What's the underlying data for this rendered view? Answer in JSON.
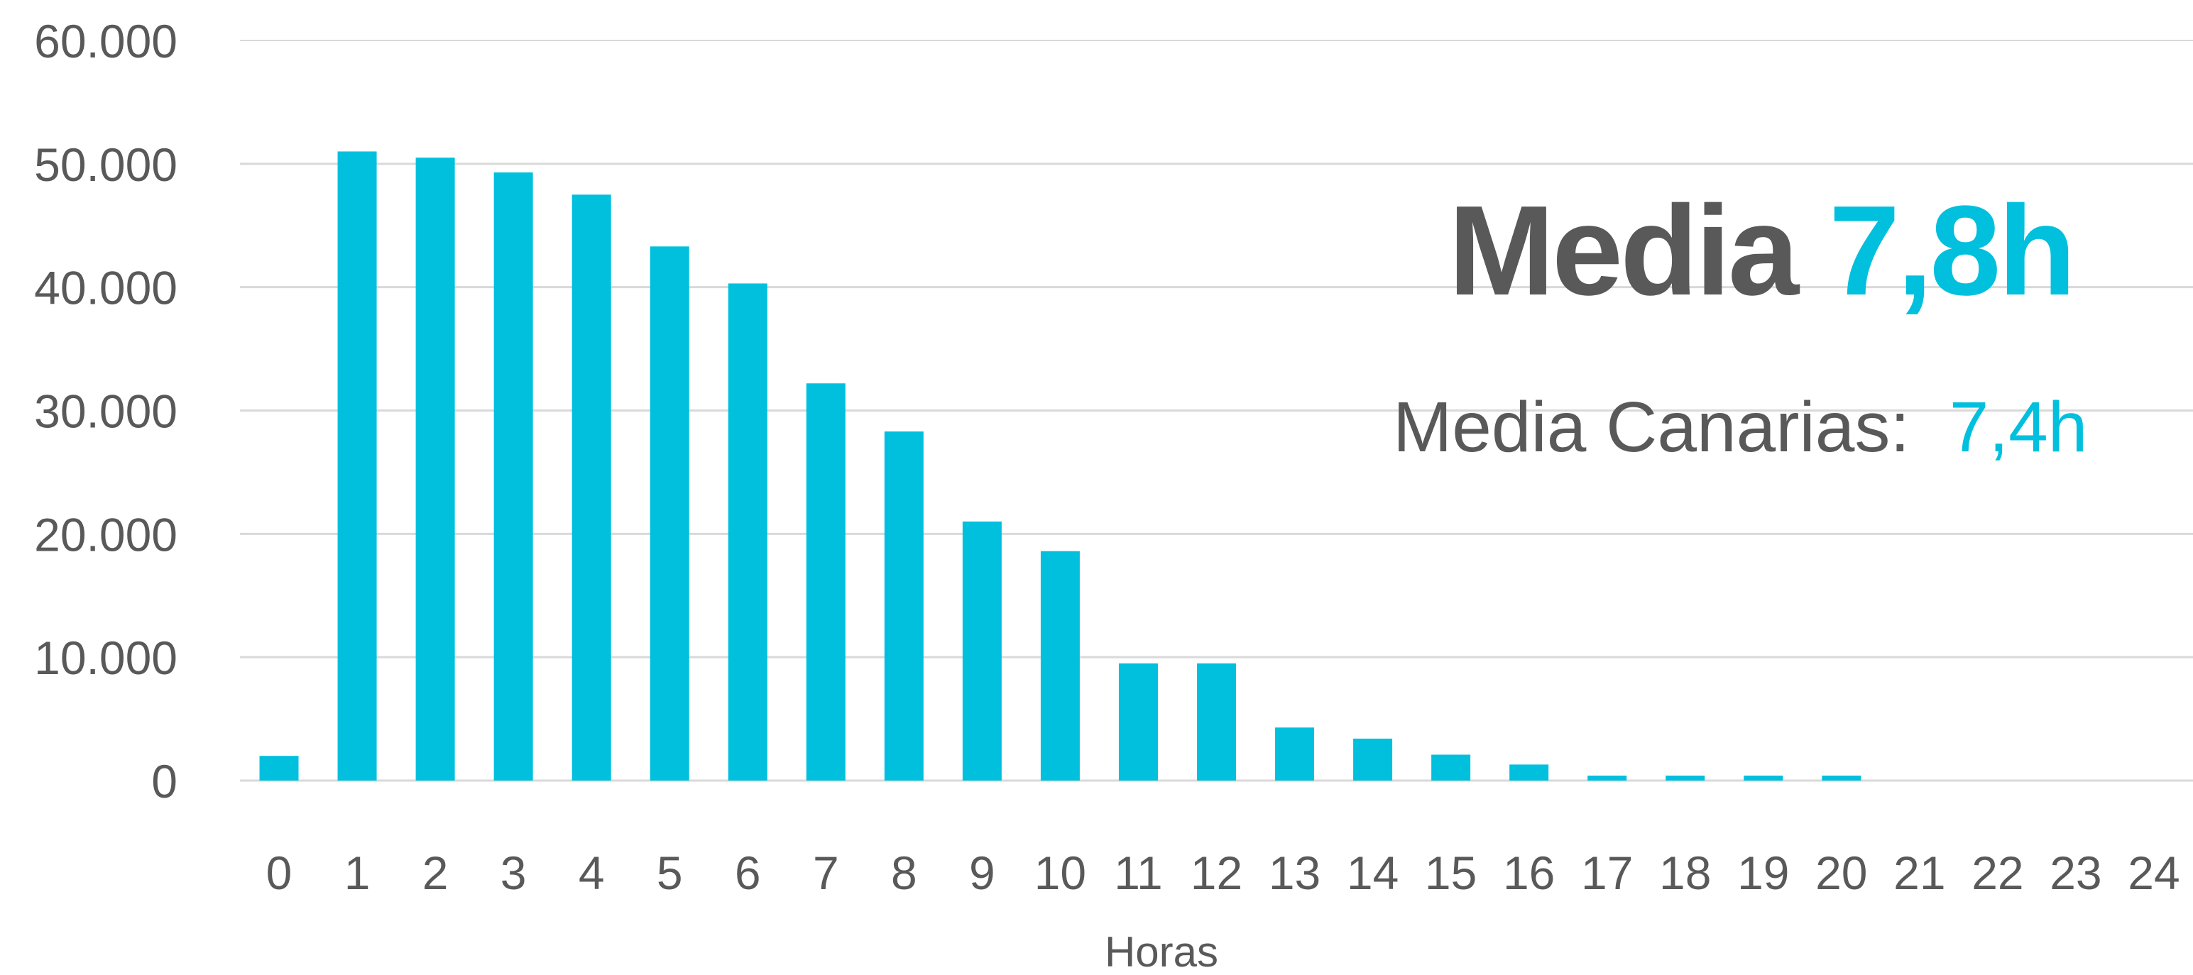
{
  "chart_data": {
    "type": "bar",
    "categories": [
      "0",
      "1",
      "2",
      "3",
      "4",
      "5",
      "6",
      "7",
      "8",
      "9",
      "10",
      "11",
      "12",
      "13",
      "14",
      "15",
      "16",
      "17",
      "18",
      "19",
      "20",
      "21",
      "22",
      "23",
      "24"
    ],
    "values": [
      2000,
      51000,
      50500,
      49300,
      47500,
      43300,
      40300,
      32200,
      28300,
      21000,
      18600,
      9500,
      9500,
      4300,
      3400,
      2100,
      1300,
      400,
      400,
      400,
      400,
      0,
      0,
      0,
      0
    ],
    "xlabel": "Horas",
    "ylabel": "",
    "ylim": [
      0,
      60000
    ],
    "yticks": [
      0,
      10000,
      20000,
      30000,
      40000,
      50000,
      60000
    ],
    "ytick_labels": [
      "0",
      "10.000",
      "20.000",
      "30.000",
      "40.000",
      "50.000",
      "60.000"
    ],
    "bar_color": "#00c0de",
    "grid": true,
    "annotations": {
      "main_label": "Media",
      "main_value": "7,8h",
      "sub_label": "Media Canarias:",
      "sub_value": "7,4h"
    }
  },
  "colors": {
    "accent": "#00c0de",
    "text": "#595959",
    "grid": "#d9d9d9"
  }
}
